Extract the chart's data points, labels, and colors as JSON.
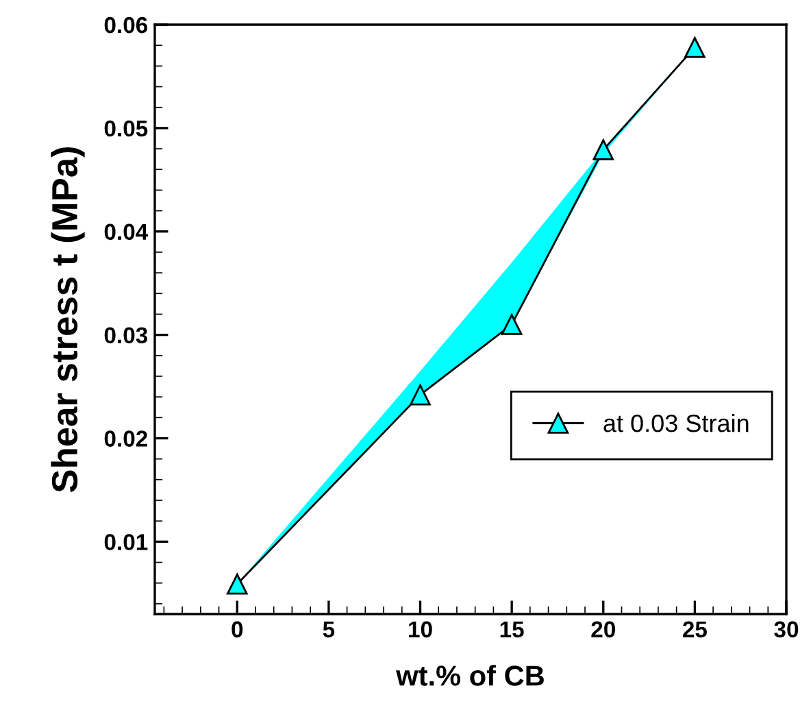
{
  "chart_data": {
    "type": "line",
    "xlabel": "wt.% of CB",
    "ylabel": "Shear stress t (MPa)",
    "x": [
      0,
      10,
      15,
      20,
      25
    ],
    "series": [
      {
        "name": "at 0.03 Strain",
        "color": "#00ffff",
        "values": [
          0.0059,
          0.0242,
          0.031,
          0.0479,
          0.0578
        ],
        "lower": [
          0.0059,
          0.0242,
          0.031,
          0.0475,
          0.0578
        ],
        "upper": [
          0.0059,
          0.0265,
          0.037,
          0.0479,
          0.0578
        ]
      }
    ],
    "xlim": [
      -4.5,
      30
    ],
    "xticks": [
      0,
      5,
      10,
      15,
      20,
      25,
      30
    ],
    "ylim": [
      0.003,
      0.06
    ],
    "yticks": [
      0.01,
      0.02,
      0.03,
      0.04,
      0.05,
      0.06
    ],
    "marker": "triangle",
    "line_style": "solid",
    "grid": false,
    "legend": "right"
  }
}
